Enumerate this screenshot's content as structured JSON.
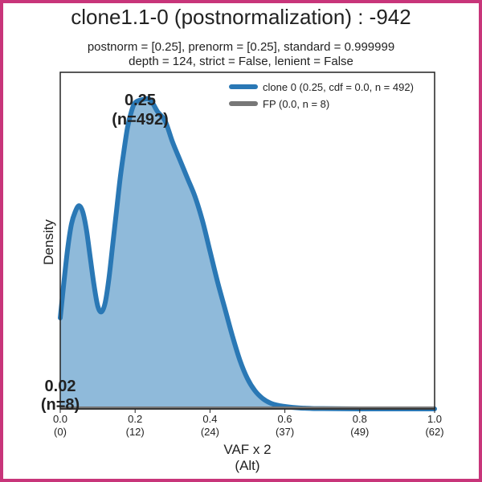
{
  "chart_data": {
    "type": "area",
    "title": "clone1.1-0 (postnormalization) : -942",
    "subtitle_lines": [
      "postnorm = [0.25], prenorm = [0.25], standard = 0.999999",
      "depth = 124, strict = False, lenient = False"
    ],
    "xlabel": "VAF x 2",
    "xlabel_sub": "(Alt)",
    "ylabel": "Density",
    "xlim": [
      0,
      1
    ],
    "ylim": [
      0,
      1.11
    ],
    "x_ticks": [
      {
        "value": 0.0,
        "label": "0.0",
        "sub": "(0)"
      },
      {
        "value": 0.2,
        "label": "0.2",
        "sub": "(12)"
      },
      {
        "value": 0.4,
        "label": "0.4",
        "sub": "(24)"
      },
      {
        "value": 0.6,
        "label": "0.6",
        "sub": "(37)"
      },
      {
        "value": 0.8,
        "label": "0.8",
        "sub": "(49)"
      },
      {
        "value": 1.0,
        "label": "1.0",
        "sub": "(62)"
      }
    ],
    "legend_placement": "top-right",
    "series": [
      {
        "name": "clone 0 (0.25, cdf = 0.0, n = 492)",
        "color": "#2a78b5",
        "fill": "#8fbada",
        "x": [
          0.0,
          0.01,
          0.02,
          0.03,
          0.04,
          0.05,
          0.06,
          0.07,
          0.08,
          0.09,
          0.1,
          0.11,
          0.12,
          0.13,
          0.14,
          0.15,
          0.16,
          0.17,
          0.18,
          0.19,
          0.2,
          0.22,
          0.24,
          0.26,
          0.28,
          0.3,
          0.32,
          0.34,
          0.36,
          0.38,
          0.4,
          0.42,
          0.44,
          0.46,
          0.48,
          0.5,
          0.52,
          0.54,
          0.56,
          0.58,
          0.6,
          0.62,
          0.64,
          0.66,
          0.68,
          0.7,
          0.8,
          0.9,
          1.0
        ],
        "y": [
          0.3,
          0.42,
          0.53,
          0.61,
          0.65,
          0.67,
          0.65,
          0.59,
          0.5,
          0.41,
          0.34,
          0.32,
          0.35,
          0.43,
          0.54,
          0.65,
          0.76,
          0.85,
          0.93,
          0.98,
          1.01,
          1.02,
          1.02,
          0.98,
          0.95,
          0.88,
          0.82,
          0.76,
          0.7,
          0.62,
          0.52,
          0.42,
          0.33,
          0.24,
          0.16,
          0.1,
          0.06,
          0.035,
          0.02,
          0.012,
          0.008,
          0.005,
          0.003,
          0.002,
          0.001,
          0.001,
          0.0,
          0.0,
          0.0
        ]
      },
      {
        "name": "FP (0.0, n = 8)",
        "color": "#777777",
        "x": [
          0.0,
          1.0
        ],
        "y": [
          0.0,
          0.0
        ]
      }
    ],
    "annotations": [
      {
        "x": 0.25,
        "line1": "0.25",
        "line2": "(n=492)"
      },
      {
        "x": 0.0,
        "line1": "0.02",
        "line2": "(n=8)"
      }
    ]
  }
}
